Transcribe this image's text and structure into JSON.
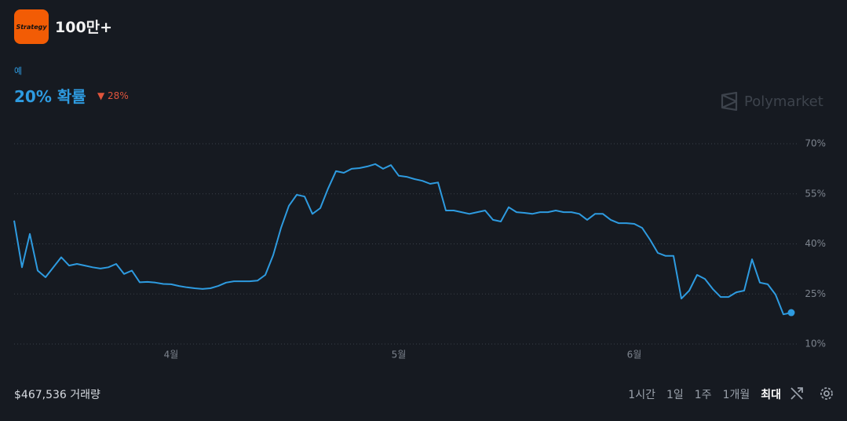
{
  "header": {
    "logo_text": "Strategy",
    "title": "100만+"
  },
  "outcome": "예",
  "probability": "20% 확률",
  "change": "28%",
  "brand": "Polymarket",
  "chart_data": {
    "type": "line",
    "categories": [
      null,
      null,
      null,
      null,
      null,
      null,
      null,
      null,
      null,
      null,
      null,
      null,
      null,
      null,
      null,
      null,
      null,
      null,
      null,
      null,
      "4월",
      null,
      null,
      null,
      null,
      null,
      null,
      null,
      null,
      null,
      null,
      null,
      null,
      null,
      null,
      null,
      null,
      null,
      null,
      null,
      null,
      null,
      null,
      null,
      null,
      null,
      null,
      null,
      null,
      "5월",
      null,
      null,
      null,
      null,
      null,
      null,
      null,
      null,
      null,
      null,
      null,
      null,
      null,
      null,
      null,
      null,
      null,
      null,
      null,
      null,
      null,
      null,
      null,
      null,
      null,
      null,
      null,
      null,
      null,
      "6월",
      null,
      null,
      null,
      null,
      null,
      null,
      null,
      null,
      null,
      null,
      null,
      null,
      null,
      null,
      null,
      null,
      null,
      null,
      null,
      null
    ],
    "values": [
      47,
      33,
      43,
      32,
      30,
      33,
      36,
      33.5,
      34,
      33.5,
      33,
      32.6,
      33,
      34,
      31,
      32,
      28.5,
      28.6,
      28.4,
      28,
      27.9,
      27.4,
      27,
      26.7,
      26.5,
      26.7,
      27.4,
      28.4,
      28.8,
      28.8,
      28.8,
      29,
      30.7,
      36.6,
      44.8,
      51.4,
      54.7,
      54.2,
      49,
      50.7,
      56.6,
      61.8,
      61.3,
      62.5,
      62.7,
      63.2,
      63.9,
      62.5,
      63.6,
      60.4,
      60.1,
      59.4,
      58.9,
      58,
      58.4,
      50,
      50,
      49.5,
      49,
      49.5,
      50,
      47.2,
      46.7,
      51,
      49.5,
      49.3,
      49,
      49.5,
      49.5,
      50,
      49.5,
      49.5,
      49,
      47.2,
      49,
      49,
      47.2,
      46.2,
      46.2,
      46,
      44.8,
      41.3,
      37.3,
      36.4,
      36.4,
      23.6,
      26,
      30.7,
      29.5,
      26.5,
      24.1,
      24.1,
      25.5,
      26,
      35.4,
      28.4,
      27.9,
      24.8,
      18.9,
      19.4
    ],
    "color": "#2e9be0",
    "ylim": [
      10,
      70
    ],
    "yticks": [
      {
        "value": 10,
        "label": "10%"
      },
      {
        "value": 25,
        "label": "25%"
      },
      {
        "value": 40,
        "label": "40%"
      },
      {
        "value": 55,
        "label": "55%"
      },
      {
        "value": 70,
        "label": "70%"
      }
    ],
    "grid": true
  },
  "volume": "$467,536 거래량",
  "ranges": [
    "1시간",
    "1일",
    "1주",
    "1개월",
    "최대"
  ],
  "selected_range": 4
}
